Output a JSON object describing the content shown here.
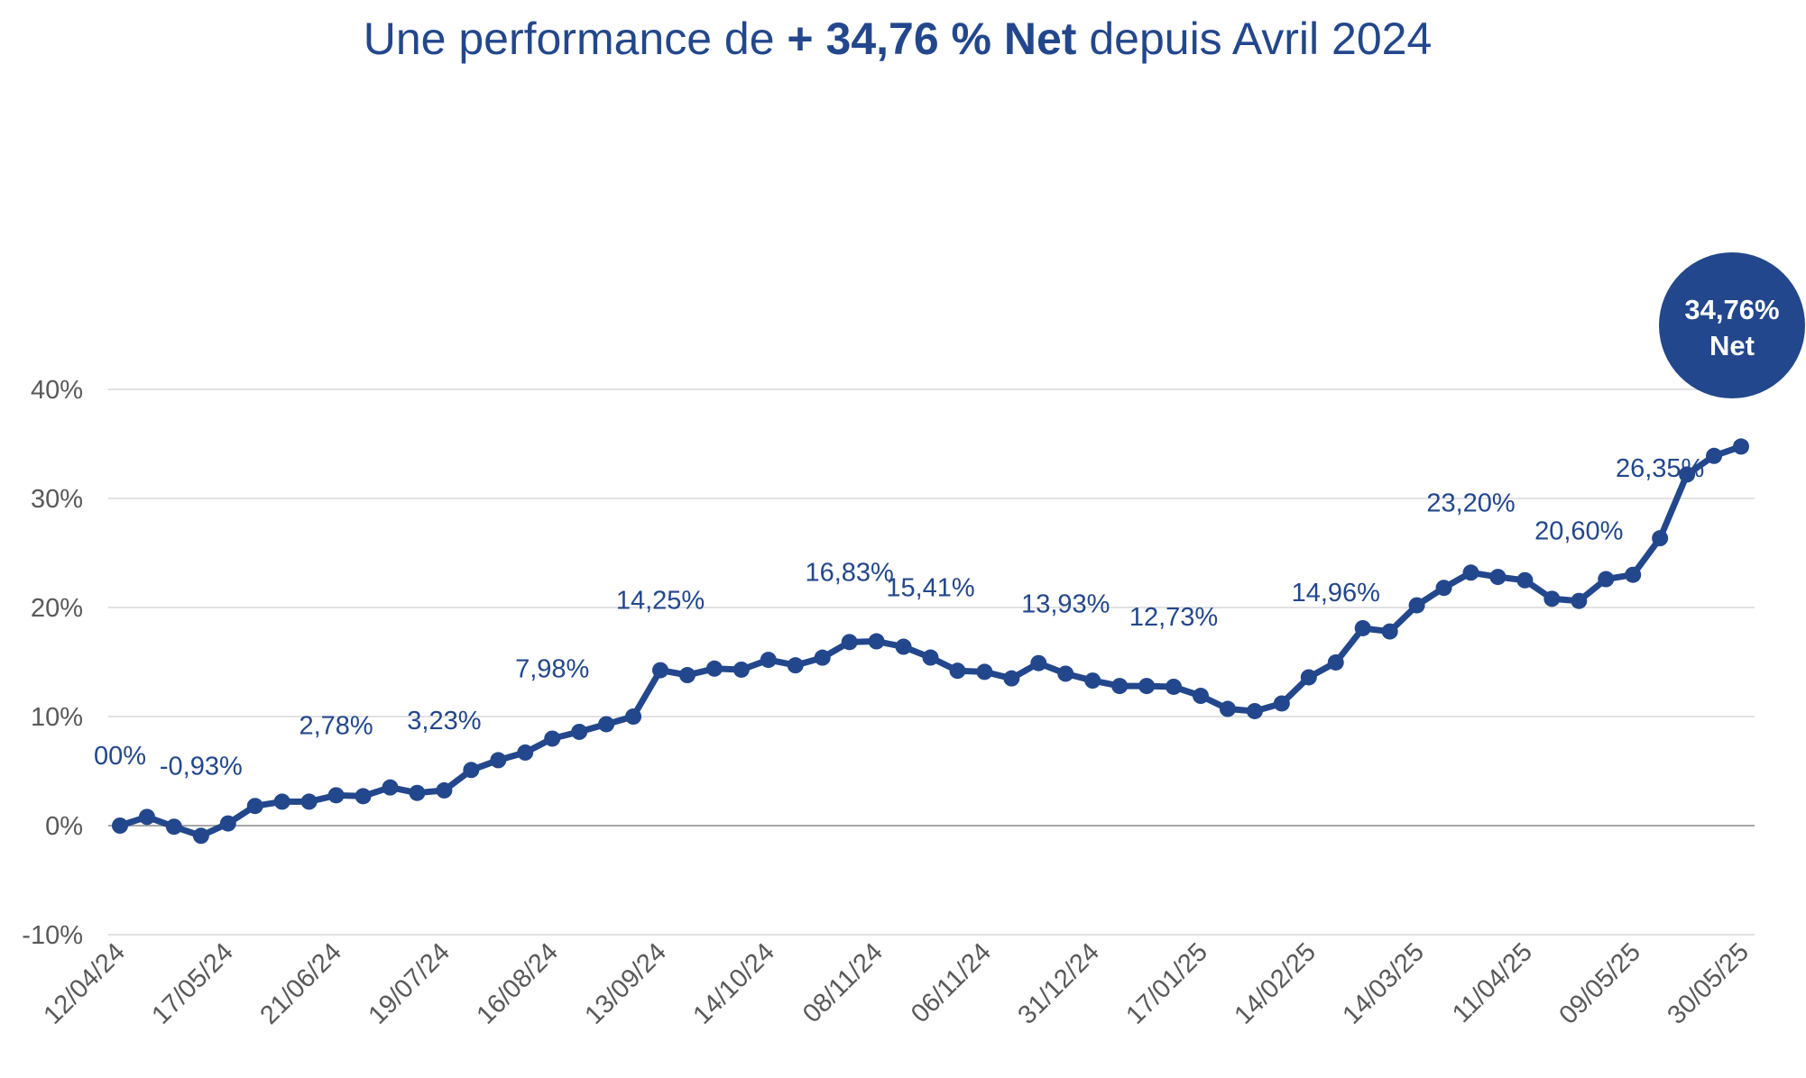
{
  "title": {
    "prefix": "Une performance de ",
    "bold": "+ 34,76 % Net",
    "suffix": " depuis Avril 2024"
  },
  "colors": {
    "line": "#23478c",
    "grid": "#d9d9d9",
    "zero": "#a6a6a6",
    "tick_text": "#595959"
  },
  "chart_data": {
    "type": "line",
    "title": "Une performance de + 34,76 % Net depuis Avril 2024",
    "xlabel": "",
    "ylabel": "",
    "ylim": [
      -10,
      40
    ],
    "y_ticks": [
      -10,
      0,
      10,
      20,
      30,
      40
    ],
    "y_tick_labels": [
      "-10%",
      "0%",
      "10%",
      "20%",
      "30%",
      "40%"
    ],
    "grid": true,
    "x_tick_labels": [
      "12/04/24",
      "17/05/24",
      "21/06/24",
      "19/07/24",
      "16/08/24",
      "13/09/24",
      "14/10/24",
      "08/11/24",
      "06/11/24",
      "31/12/24",
      "17/01/25",
      "14/02/25",
      "14/03/25",
      "11/04/25",
      "09/05/25",
      "30/05/25"
    ],
    "series": [
      {
        "values": [
          0,
          0.8,
          -0.1,
          -0.93,
          0.2,
          1.8,
          2.2,
          2.2,
          2.78,
          2.7,
          3.5,
          3.0,
          3.23,
          5.1,
          6.0,
          6.7,
          7.98,
          8.6,
          9.3,
          10.0,
          14.25,
          13.8,
          14.4,
          14.3,
          15.2,
          14.7,
          15.4,
          16.83,
          16.9,
          16.4,
          15.41,
          14.2,
          14.1,
          13.5,
          14.9,
          13.93,
          13.3,
          12.8,
          12.8,
          12.73,
          11.9,
          10.7,
          10.5,
          11.2,
          13.6,
          14.96,
          18.1,
          17.8,
          20.2,
          21.8,
          23.2,
          22.8,
          22.5,
          20.8,
          20.6,
          22.6,
          23.0,
          26.35,
          32.2,
          33.9,
          34.76
        ]
      }
    ],
    "data_labels": [
      {
        "text": "00%",
        "index": 0
      },
      {
        "text": "-0,93%",
        "index": 3
      },
      {
        "text": "2,78%",
        "index": 8
      },
      {
        "text": "3,23%",
        "index": 12
      },
      {
        "text": "7,98%",
        "index": 16
      },
      {
        "text": "14,25%",
        "index": 20
      },
      {
        "text": "16,83%",
        "index": 27
      },
      {
        "text": "15,41%",
        "index": 30
      },
      {
        "text": "13,93%",
        "index": 35
      },
      {
        "text": "12,73%",
        "index": 39
      },
      {
        "text": "14,96%",
        "index": 45
      },
      {
        "text": "23,20%",
        "index": 50
      },
      {
        "text": "20,60%",
        "index": 54
      },
      {
        "text": "26,35%",
        "index": 57
      }
    ],
    "badge": {
      "line1": "34,76%",
      "line2": "Net"
    }
  }
}
